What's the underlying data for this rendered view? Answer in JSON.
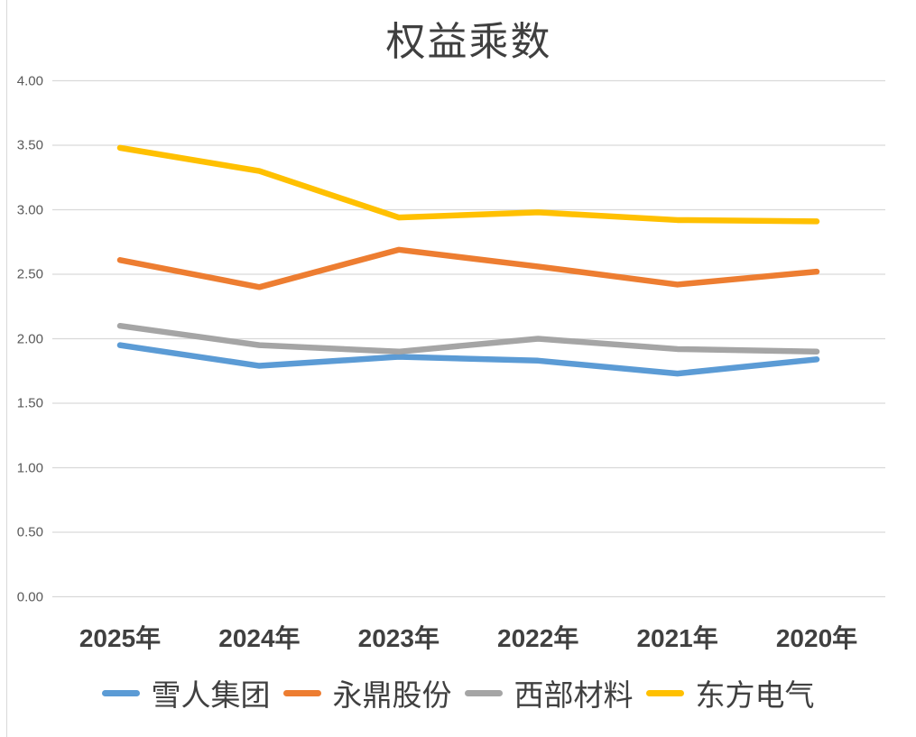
{
  "title": "权益乘数",
  "chart_data": {
    "type": "line",
    "title": "权益乘数",
    "categories": [
      "2025年",
      "2024年",
      "2023年",
      "2022年",
      "2021年",
      "2020年"
    ],
    "series": [
      {
        "name": "雪人集团",
        "color": "#5B9BD5",
        "values": [
          1.95,
          1.79,
          1.86,
          1.83,
          1.73,
          1.84
        ]
      },
      {
        "name": "永鼎股份",
        "color": "#ED7D31",
        "values": [
          2.61,
          2.4,
          2.69,
          2.56,
          2.42,
          2.52
        ]
      },
      {
        "name": "西部材料",
        "color": "#A5A5A5",
        "values": [
          2.1,
          1.95,
          1.9,
          2.0,
          1.92,
          1.9
        ]
      },
      {
        "name": "东方电气",
        "color": "#FFC000",
        "values": [
          3.48,
          3.3,
          2.94,
          2.98,
          2.92,
          2.91
        ]
      }
    ],
    "y_axis": {
      "min": 0,
      "max": 4,
      "step": 0.5,
      "tick_labels": [
        "4.00",
        "3.50",
        "3.00",
        "2.50",
        "2.00",
        "1.50",
        "1.00",
        "0.50",
        "0.00"
      ]
    },
    "grid": true,
    "gridline_color": "#d9d9d9",
    "legend_position": "bottom",
    "colors": {
      "title_text": "#3f3f3f",
      "axis_tick_text": "#595959",
      "category_text": "#404040",
      "legend_text": "#404040",
      "background": "#ffffff",
      "edge_line": "#d9d9d9"
    }
  }
}
